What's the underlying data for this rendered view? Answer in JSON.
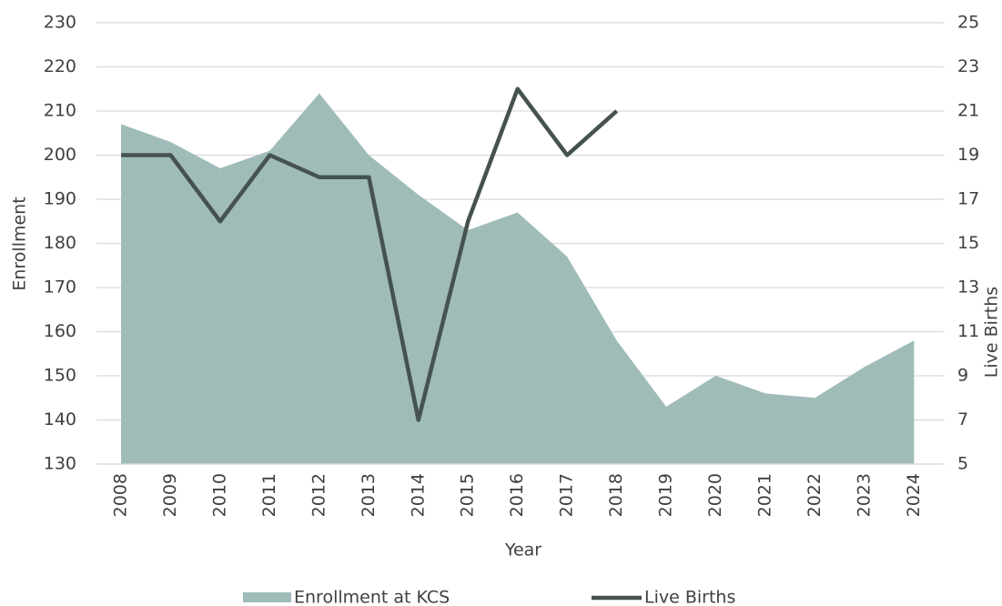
{
  "chart_data": {
    "type": "area_line",
    "categories": [
      "2008",
      "2009",
      "2010",
      "2011",
      "2012",
      "2013",
      "2014",
      "2015",
      "2016",
      "2017",
      "2018",
      "2019",
      "2020",
      "2021",
      "2022",
      "2023",
      "2024"
    ],
    "series": [
      {
        "name": "Enrollment at KCS",
        "type": "area",
        "color": "#9fbcb9",
        "values": [
          207,
          203,
          197,
          201,
          214,
          200,
          191,
          183,
          187,
          177,
          158,
          143,
          150,
          146,
          145,
          152,
          158
        ]
      },
      {
        "name": "Live Births",
        "type": "line",
        "axis": "y2",
        "color": "#45524f",
        "values": [
          19,
          19,
          16,
          19,
          18,
          18,
          7,
          16,
          22,
          19,
          21,
          null,
          null,
          null,
          null,
          null,
          null
        ]
      }
    ],
    "xlabel": "Year",
    "ylabel": "Enrollment",
    "y2label": "Live Births",
    "ylim": [
      130,
      230
    ],
    "yticks": [
      130,
      140,
      150,
      160,
      170,
      180,
      190,
      200,
      210,
      220,
      230
    ],
    "y2lim": [
      5,
      25
    ],
    "y2ticks": [
      5,
      7,
      9,
      11,
      13,
      15,
      17,
      19,
      21,
      23,
      25
    ],
    "grid": true,
    "legend": "bottom"
  }
}
